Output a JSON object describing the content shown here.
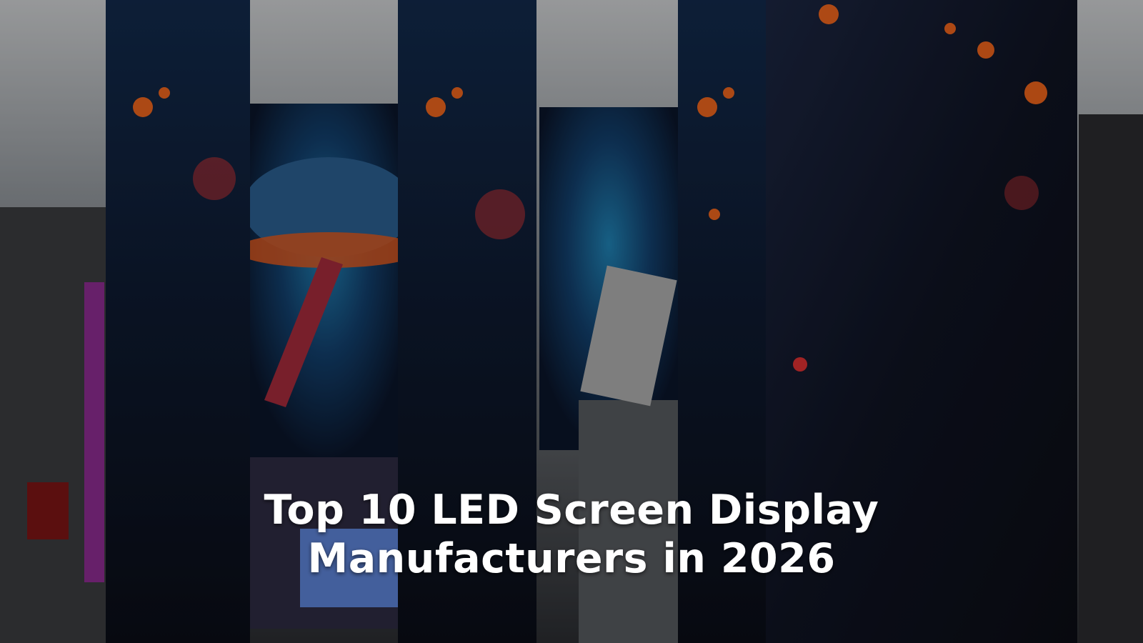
{
  "title": "Top 10 LED Screen Display Manufacturers in 2026"
}
